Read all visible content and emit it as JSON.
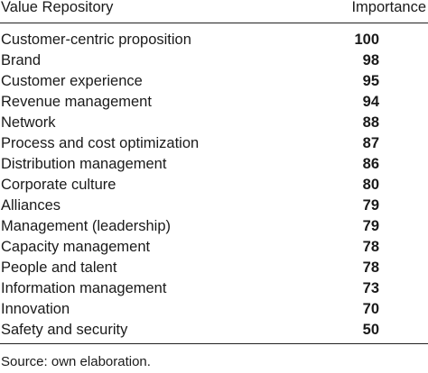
{
  "table": {
    "headers": {
      "name": "Value Repository",
      "importance": "Importance"
    },
    "rows": [
      {
        "name": "Customer-centric proposition",
        "importance": "100"
      },
      {
        "name": "Brand",
        "importance": "98"
      },
      {
        "name": "Customer experience",
        "importance": "95"
      },
      {
        "name": "Revenue management",
        "importance": "94"
      },
      {
        "name": "Network",
        "importance": "88"
      },
      {
        "name": "Process and cost optimization",
        "importance": "87"
      },
      {
        "name": "Distribution management",
        "importance": "86"
      },
      {
        "name": "Corporate culture",
        "importance": "80"
      },
      {
        "name": "Alliances",
        "importance": "79"
      },
      {
        "name": "Management (leadership)",
        "importance": "79"
      },
      {
        "name": "Capacity management",
        "importance": "78"
      },
      {
        "name": "People and talent",
        "importance": "78"
      },
      {
        "name": "Information management",
        "importance": "73"
      },
      {
        "name": "Innovation",
        "importance": "70"
      },
      {
        "name": "Safety and security",
        "importance": "50"
      }
    ]
  },
  "source": "Source: own elaboration."
}
